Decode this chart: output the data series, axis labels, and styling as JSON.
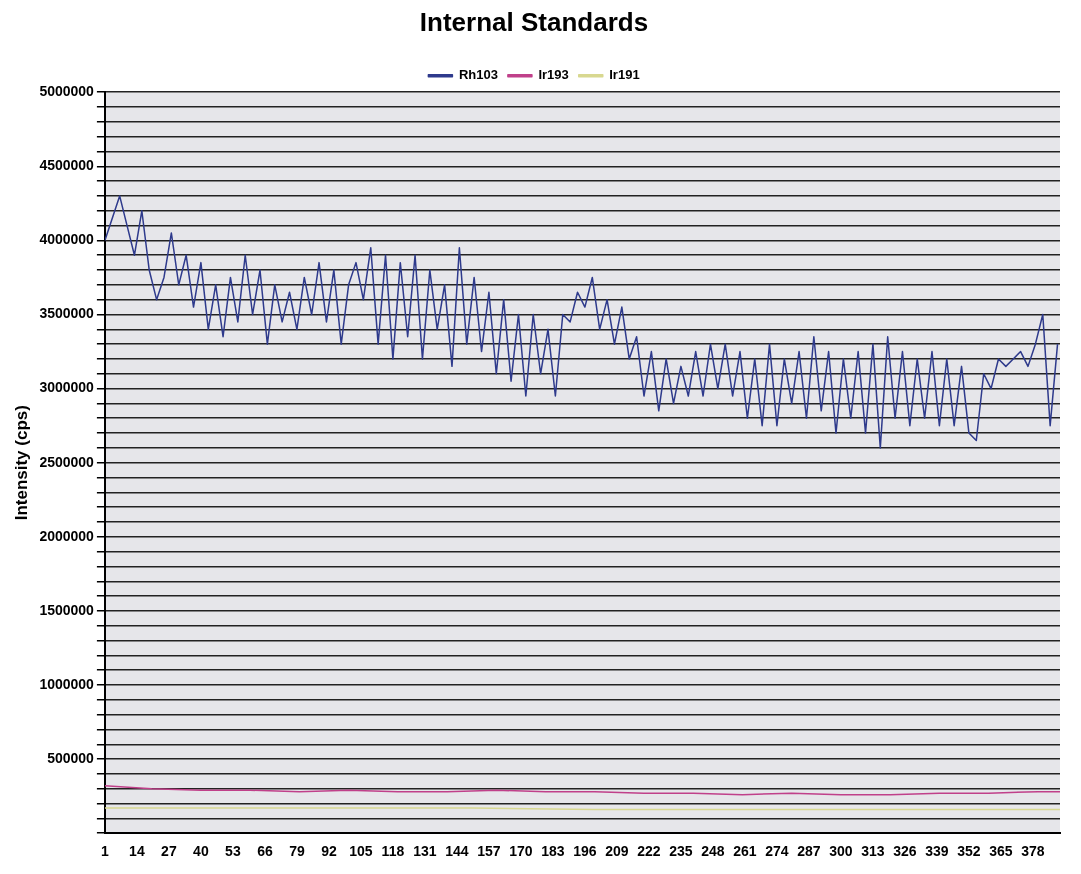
{
  "chart_data": {
    "type": "line",
    "title": "Internal Standards",
    "ylabel": "Intensity (cps)",
    "legend": "top",
    "grid": "y",
    "marker": "none",
    "line_style": "solid",
    "xlim": [
      1,
      389
    ],
    "xticks": [
      1,
      14,
      27,
      40,
      53,
      66,
      79,
      92,
      105,
      118,
      131,
      144,
      157,
      170,
      183,
      196,
      209,
      222,
      235,
      248,
      261,
      274,
      287,
      300,
      313,
      326,
      339,
      352,
      365,
      378
    ],
    "ylim": [
      0,
      5000000
    ],
    "yticks": [
      {
        "value": 0,
        "label": null
      },
      {
        "value": 100000,
        "label": null
      },
      {
        "value": 200000,
        "label": null
      },
      {
        "value": 300000,
        "label": null
      },
      {
        "value": 400000,
        "label": null
      },
      500000,
      {
        "value": 600000,
        "label": null
      },
      {
        "value": 700000,
        "label": null
      },
      {
        "value": 800000,
        "label": null
      },
      {
        "value": 900000,
        "label": null
      },
      1000000,
      {
        "value": 1100000,
        "label": null
      },
      {
        "value": 1200000,
        "label": null
      },
      {
        "value": 1300000,
        "label": null
      },
      {
        "value": 1400000,
        "label": null
      },
      1500000,
      {
        "value": 1600000,
        "label": null
      },
      {
        "value": 1700000,
        "label": null
      },
      {
        "value": 1800000,
        "label": null
      },
      {
        "value": 1900000,
        "label": null
      },
      2000000,
      {
        "value": 2100000,
        "label": null
      },
      {
        "value": 2200000,
        "label": null
      },
      {
        "value": 2300000,
        "label": null
      },
      {
        "value": 2400000,
        "label": null
      },
      2500000,
      {
        "value": 2600000,
        "label": null
      },
      {
        "value": 2700000,
        "label": null
      },
      {
        "value": 2800000,
        "label": null
      },
      {
        "value": 2900000,
        "label": null
      },
      3000000,
      {
        "value": 3100000,
        "label": null
      },
      {
        "value": 3200000,
        "label": null
      },
      {
        "value": 3300000,
        "label": null
      },
      {
        "value": 3400000,
        "label": null
      },
      3500000,
      {
        "value": 3600000,
        "label": null
      },
      {
        "value": 3700000,
        "label": null
      },
      {
        "value": 3800000,
        "label": null
      },
      {
        "value": 3900000,
        "label": null
      },
      4000000,
      {
        "value": 4100000,
        "label": null
      },
      {
        "value": 4200000,
        "label": null
      },
      {
        "value": 4300000,
        "label": null
      },
      {
        "value": 4400000,
        "label": null
      },
      4500000,
      {
        "value": 4600000,
        "label": null
      },
      {
        "value": 4700000,
        "label": null
      },
      {
        "value": 4800000,
        "label": null
      },
      {
        "value": 4900000,
        "label": null
      },
      5000000
    ],
    "series": [
      {
        "name": "Rh103",
        "color": "#2e3a8c",
        "x": [
          1,
          4,
          7,
          10,
          13,
          16,
          19,
          22,
          25,
          28,
          31,
          34,
          37,
          40,
          43,
          46,
          49,
          52,
          55,
          58,
          61,
          64,
          67,
          70,
          73,
          76,
          79,
          82,
          85,
          88,
          91,
          94,
          97,
          100,
          103,
          106,
          109,
          112,
          115,
          118,
          121,
          124,
          127,
          130,
          133,
          136,
          139,
          142,
          145,
          148,
          151,
          154,
          157,
          160,
          163,
          166,
          169,
          172,
          175,
          178,
          181,
          184,
          187,
          190,
          193,
          196,
          199,
          202,
          205,
          208,
          211,
          214,
          217,
          220,
          223,
          226,
          229,
          232,
          235,
          238,
          241,
          244,
          247,
          250,
          253,
          256,
          259,
          262,
          265,
          268,
          271,
          274,
          277,
          280,
          283,
          286,
          289,
          292,
          295,
          298,
          301,
          304,
          307,
          310,
          313,
          316,
          319,
          322,
          325,
          328,
          331,
          334,
          337,
          340,
          343,
          346,
          349,
          352,
          355,
          358,
          361,
          364,
          367,
          370,
          373,
          376,
          379,
          382,
          385,
          388
        ],
        "values": [
          4000000,
          4150000,
          4300000,
          4100000,
          3900000,
          4200000,
          3800000,
          3600000,
          3750000,
          4050000,
          3700000,
          3900000,
          3550000,
          3850000,
          3400000,
          3700000,
          3350000,
          3750000,
          3450000,
          3900000,
          3500000,
          3800000,
          3300000,
          3700000,
          3450000,
          3650000,
          3400000,
          3750000,
          3500000,
          3850000,
          3450000,
          3800000,
          3300000,
          3700000,
          3850000,
          3600000,
          3950000,
          3300000,
          3900000,
          3200000,
          3850000,
          3350000,
          3900000,
          3200000,
          3800000,
          3400000,
          3700000,
          3150000,
          3950000,
          3300000,
          3750000,
          3250000,
          3650000,
          3100000,
          3600000,
          3050000,
          3500000,
          2950000,
          3500000,
          3100000,
          3400000,
          2950000,
          3500000,
          3450000,
          3650000,
          3550000,
          3750000,
          3400000,
          3600000,
          3300000,
          3550000,
          3200000,
          3350000,
          2950000,
          3250000,
          2850000,
          3200000,
          2900000,
          3150000,
          2950000,
          3250000,
          2950000,
          3300000,
          3000000,
          3300000,
          2950000,
          3250000,
          2800000,
          3200000,
          2750000,
          3300000,
          2750000,
          3200000,
          2900000,
          3250000,
          2800000,
          3350000,
          2850000,
          3250000,
          2700000,
          3200000,
          2800000,
          3250000,
          2700000,
          3300000,
          2600000,
          3350000,
          2800000,
          3250000,
          2750000,
          3200000,
          2800000,
          3250000,
          2750000,
          3200000,
          2750000,
          3150000,
          2700000,
          2650000,
          3100000,
          3000000,
          3200000,
          3150000,
          3200000,
          3250000,
          3150000,
          3300000,
          3500000,
          2750000,
          3300000
        ]
      },
      {
        "name": "Ir193",
        "color": "#c0408a",
        "x": [
          1,
          20,
          40,
          60,
          80,
          100,
          120,
          140,
          160,
          180,
          200,
          220,
          240,
          260,
          280,
          300,
          320,
          340,
          360,
          380,
          389
        ],
        "values": [
          320000,
          300000,
          290000,
          290000,
          280000,
          290000,
          280000,
          280000,
          290000,
          280000,
          280000,
          270000,
          270000,
          260000,
          270000,
          260000,
          260000,
          270000,
          270000,
          280000,
          280000
        ]
      },
      {
        "name": "Ir191",
        "color": "#d8d890",
        "x": [
          1,
          50,
          100,
          150,
          200,
          250,
          300,
          350,
          389
        ],
        "values": [
          170000,
          170000,
          170000,
          170000,
          160000,
          160000,
          160000,
          160000,
          160000
        ]
      }
    ]
  }
}
